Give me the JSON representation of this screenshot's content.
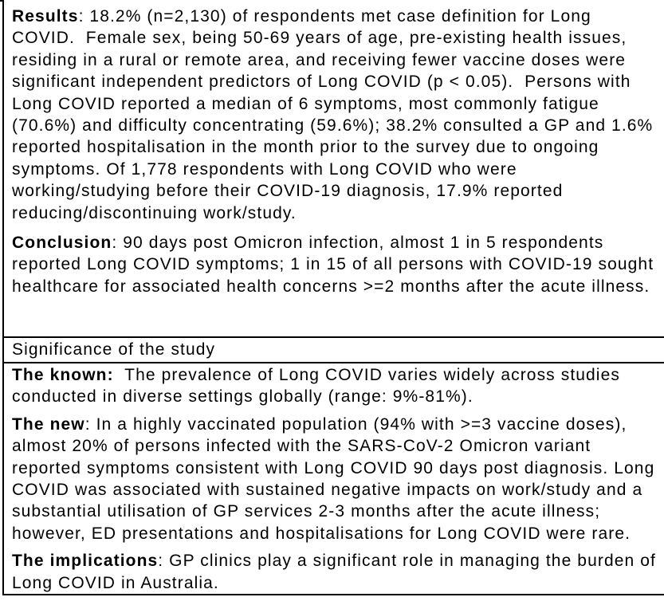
{
  "colors": {
    "text": "#000000",
    "border": "#000000",
    "background": "#ffffff"
  },
  "page": {
    "abstract": {
      "paragraphs": [
        {
          "label": "Results",
          "sep": ": ",
          "lines": [
            "18.2% (n=2,130) of respondents met case definition for Long",
            "COVID.  Female sex, being 50-69 years of age, pre-existing health issues,",
            "residing in a rural or remote area, and receiving fewer vaccine doses were",
            "significant independent predictors of Long COVID (p < 0.05).  Persons with",
            "Long COVID reported a median of 6 symptoms, most commonly fatigue",
            "(70.6%) and difficulty concentrating (59.6%); 38.2% consulted a GP and 1.6%",
            "reported hospitalisation in the month prior to the survey due to ongoing",
            "symptoms. Of 1,778 respondents with Long COVID who were",
            "working/studying before their COVID-19 diagnosis, 17.9% reported",
            "reducing/discontinuing work/study."
          ]
        },
        {
          "label": "Conclusion",
          "sep": ": ",
          "lines": [
            "90 days post Omicron infection, almost 1 in 5 respondents",
            "reported Long COVID symptoms; 1 in 15 of all persons with COVID-19 sought",
            "healthcare for associated health concerns >=2 months after the acute illness."
          ]
        }
      ]
    },
    "significance": {
      "header": "Significance of the study",
      "paragraphs": [
        {
          "label": "The known:",
          "sep": "  ",
          "lines": [
            "The prevalence of Long COVID varies widely across studies",
            "conducted in diverse settings globally (range: 9%-81%)."
          ]
        },
        {
          "label": "The new",
          "sep": ": ",
          "lines": [
            "In a highly vaccinated population (94% with >=3 vaccine doses),",
            "almost 20% of persons infected with the SARS-CoV-2 Omicron variant",
            "reported symptoms consistent with Long COVID 90 days post diagnosis. Long",
            "COVID was associated with sustained negative impacts on work/study and a",
            "substantial utilisation of GP services 2-3 months after the acute illness;",
            "however, ED presentations and hospitalisations for Long COVID were rare."
          ]
        },
        {
          "label": "The implications",
          "sep": ": ",
          "lines": [
            "GP clinics play a significant role in managing the burden of",
            "Long COVID in Australia."
          ]
        }
      ]
    }
  }
}
